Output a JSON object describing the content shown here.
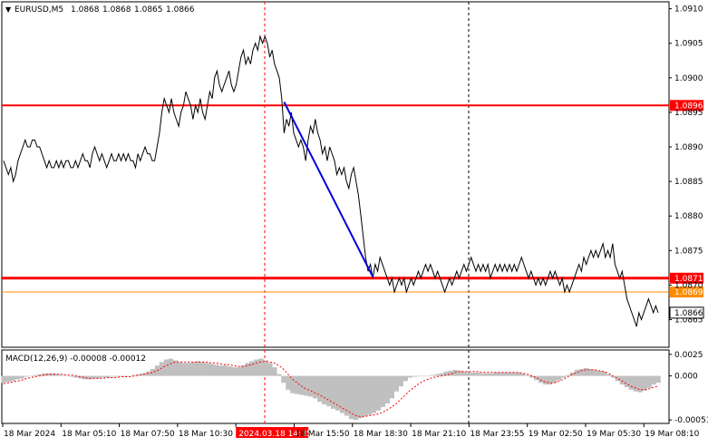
{
  "chart_data": [
    {
      "type": "line",
      "header": {
        "symbol": "EURUSD,M5",
        "open": "1.0868",
        "high": "1.0868",
        "low": "1.0865",
        "close": "1.0866"
      },
      "ylim": [
        1.0861,
        1.0911
      ],
      "y_ticks": [
        "1.0910",
        "1.0905",
        "1.0900",
        "1.0895",
        "1.0890",
        "1.0885",
        "1.0880",
        "1.0875",
        "1.0870",
        "1.0865"
      ],
      "x_ticks": [
        "18 Mar 2024",
        "18 Mar 05:10",
        "18 Mar 07:50",
        "18 Mar 10:30",
        "2024.03.18 14:35",
        "18 Mar 15:50",
        "18 Mar 18:30",
        "18 Mar 21:10",
        "18 Mar 23:55",
        "19 Mar 02:50",
        "19 Mar 05:30",
        "19 Mar 08:10"
      ],
      "highlighted_time": "2024.03.18 14:35",
      "levels": [
        {
          "value": 1.0896,
          "label": "1.0896",
          "color": "#ff0000",
          "style": "solid"
        },
        {
          "value": 1.0871,
          "label": "1.0871",
          "color": "#ff0000",
          "style": "thick"
        },
        {
          "value": 1.0869,
          "label": "1.0869",
          "color": "#ff8c00",
          "style": "thin"
        }
      ],
      "current_price": "1.0866",
      "trendline": {
        "from": {
          "x": 117,
          "y": 1.08965
        },
        "to": {
          "x": 154,
          "y": 1.08712
        },
        "color": "#0000dd"
      },
      "series": [
        {
          "color": "#000000",
          "values": [
            1.0888,
            1.0887,
            1.0886,
            1.0887,
            1.0885,
            1.0886,
            1.0888,
            1.0889,
            1.089,
            1.0891,
            1.089,
            1.089,
            1.0891,
            1.0891,
            1.089,
            1.089,
            1.0889,
            1.0888,
            1.0887,
            1.0888,
            1.0887,
            1.0887,
            1.0888,
            1.0887,
            1.0888,
            1.0887,
            1.0888,
            1.0888,
            1.0887,
            1.0887,
            1.0888,
            1.0887,
            1.0888,
            1.0889,
            1.0888,
            1.0888,
            1.0887,
            1.0889,
            1.089,
            1.0889,
            1.0888,
            1.0889,
            1.0888,
            1.0887,
            1.0888,
            1.0889,
            1.0888,
            1.0888,
            1.0889,
            1.0888,
            1.0889,
            1.0888,
            1.0889,
            1.0888,
            1.0888,
            1.0887,
            1.0889,
            1.0888,
            1.0889,
            1.089,
            1.0889,
            1.0889,
            1.0888,
            1.0888,
            1.089,
            1.0892,
            1.0895,
            1.0897,
            1.0896,
            1.0895,
            1.0897,
            1.0895,
            1.0894,
            1.0893,
            1.0895,
            1.0896,
            1.0898,
            1.0897,
            1.0896,
            1.0894,
            1.0896,
            1.0895,
            1.0897,
            1.0895,
            1.0894,
            1.0896,
            1.0898,
            1.0897,
            1.09,
            1.0901,
            1.0899,
            1.0898,
            1.0899,
            1.09,
            1.0901,
            1.0899,
            1.0898,
            1.0899,
            1.0901,
            1.0903,
            1.0904,
            1.0902,
            1.0903,
            1.0902,
            1.0904,
            1.0905,
            1.0904,
            1.0906,
            1.0905,
            1.0906,
            1.0905,
            1.0903,
            1.0904,
            1.0902,
            1.0901,
            1.09,
            1.0897,
            1.0892,
            1.0894,
            1.0893,
            1.0895,
            1.0892,
            1.0891,
            1.089,
            1.0891,
            1.089,
            1.0888,
            1.0891,
            1.0893,
            1.0892,
            1.0894,
            1.0892,
            1.0891,
            1.0889,
            1.089,
            1.0888,
            1.089,
            1.0889,
            1.0888,
            1.0886,
            1.0887,
            1.0886,
            1.0887,
            1.0885,
            1.0884,
            1.0886,
            1.0887,
            1.0885,
            1.0883,
            1.088,
            1.0877,
            1.0874,
            1.0872,
            1.0873,
            1.0871,
            1.0873,
            1.0872,
            1.0874,
            1.0873,
            1.0872,
            1.0871,
            1.087,
            1.0871,
            1.0869,
            1.087,
            1.0871,
            1.087,
            1.0871,
            1.0869,
            1.087,
            1.0871,
            1.087,
            1.0871,
            1.0872,
            1.0871,
            1.0872,
            1.0873,
            1.0872,
            1.0873,
            1.0872,
            1.0871,
            1.0872,
            1.0871,
            1.087,
            1.0869,
            1.087,
            1.0871,
            1.087,
            1.0871,
            1.0872,
            1.0871,
            1.0872,
            1.0873,
            1.0872,
            1.0873,
            1.0874,
            1.0873,
            1.0872,
            1.0873,
            1.0872,
            1.0873,
            1.0872,
            1.0873,
            1.0871,
            1.0872,
            1.0873,
            1.0872,
            1.0873,
            1.0872,
            1.0873,
            1.0872,
            1.0873,
            1.0872,
            1.0873,
            1.0872,
            1.0873,
            1.0874,
            1.0873,
            1.0872,
            1.0871,
            1.0872,
            1.0871,
            1.087,
            1.0871,
            1.087,
            1.0871,
            1.087,
            1.0871,
            1.0872,
            1.0871,
            1.0872,
            1.0871,
            1.087,
            1.0871,
            1.0869,
            1.087,
            1.0869,
            1.087,
            1.0871,
            1.0872,
            1.0873,
            1.0872,
            1.0874,
            1.0873,
            1.0874,
            1.0875,
            1.0874,
            1.0875,
            1.0874,
            1.0875,
            1.0876,
            1.0874,
            1.0875,
            1.0874,
            1.0876,
            1.0873,
            1.0872,
            1.0871,
            1.0872,
            1.087,
            1.0868,
            1.0867,
            1.0866,
            1.0865,
            1.0864,
            1.0866,
            1.0865,
            1.0866,
            1.0867,
            1.0868,
            1.0867,
            1.0866,
            1.0867,
            1.0866
          ]
        }
      ]
    },
    {
      "type": "histogram",
      "title": "MACD(12,26,9) -0.00008 -0.00012",
      "ylim": [
        -0.00055,
        0.0003
      ],
      "y_ticks": [
        "0.0025",
        "0.000",
        "-0.00051"
      ],
      "series": [
        {
          "name": "MACD",
          "color": "#c0c0c0",
          "values": [
            -8e-05,
            -7e-05,
            -6e-05,
            -4e-05,
            -3e-05,
            -1e-05,
            0.0,
            1e-05,
            2e-05,
            3e-05,
            3e-05,
            3e-05,
            2e-05,
            1e-05,
            0.0,
            -1e-05,
            -2e-05,
            -3e-05,
            -4e-05,
            -4e-05,
            -3e-05,
            -3e-05,
            -2e-05,
            -2e-05,
            -1e-05,
            -1e-05,
            -1e-05,
            -1e-05,
            0.0,
            1e-05,
            2e-05,
            3e-05,
            5e-05,
            8e-05,
            0.00012,
            0.00016,
            0.00019,
            0.0002,
            0.00018,
            0.00016,
            0.00015,
            0.00015,
            0.00016,
            0.00017,
            0.00016,
            0.00015,
            0.00014,
            0.00013,
            0.00012,
            0.00012,
            0.00011,
            0.0001,
            0.0001,
            0.00012,
            0.00015,
            0.00017,
            0.00019,
            0.0002,
            0.00018,
            0.00015,
            0.0001,
            2e-05,
            -8e-05,
            -0.00016,
            -0.0002,
            -0.00021,
            -0.00022,
            -0.00023,
            -0.00024,
            -0.00026,
            -0.0003,
            -0.00033,
            -0.00035,
            -0.00038,
            -0.0004,
            -0.00043,
            -0.00046,
            -0.0005,
            -0.00051,
            -0.00049,
            -0.00047,
            -0.00045,
            -0.00043,
            -0.0004,
            -0.00036,
            -0.00032,
            -0.00026,
            -0.00018,
            -0.00012,
            -6e-05,
            -2e-05,
            -1e-05,
            0.0,
            0.0,
            0.0,
            1e-05,
            2e-05,
            3e-05,
            5e-05,
            6e-05,
            7e-05,
            6e-05,
            5e-05,
            4e-05,
            4e-05,
            4e-05,
            3e-05,
            3e-05,
            3e-05,
            4e-05,
            4e-05,
            4e-05,
            4e-05,
            4e-05,
            4e-05,
            3e-05,
            1e-05,
            -2e-05,
            -5e-05,
            -8e-05,
            -0.0001,
            -0.0001,
            -8e-05,
            -5e-05,
            -2e-05,
            1e-05,
            4e-05,
            7e-05,
            8e-05,
            9e-05,
            8e-05,
            7e-05,
            6e-05,
            5e-05,
            2e-05,
            -2e-05,
            -6e-05,
            -0.0001,
            -0.00013,
            -0.00016,
            -0.00018,
            -0.00019,
            -0.00017,
            -0.00014,
            -0.0001,
            -8e-05
          ]
        },
        {
          "name": "Signal",
          "color": "#ff0000",
          "values": [
            -9e-05,
            -8e-05,
            -7e-05,
            -6e-05,
            -5e-05,
            -3e-05,
            -2e-05,
            -1e-05,
            0.0,
            1e-05,
            2e-05,
            2e-05,
            2e-05,
            2e-05,
            1e-05,
            1e-05,
            0.0,
            -1e-05,
            -2e-05,
            -3e-05,
            -3e-05,
            -3e-05,
            -3e-05,
            -2e-05,
            -2e-05,
            -2e-05,
            -1e-05,
            -1e-05,
            -1e-05,
            0.0,
            1e-05,
            2e-05,
            3e-05,
            4e-05,
            6e-05,
            9e-05,
            0.00012,
            0.00014,
            0.00016,
            0.00016,
            0.00016,
            0.00016,
            0.00016,
            0.00016,
            0.00016,
            0.00016,
            0.00015,
            0.00015,
            0.00014,
            0.00013,
            0.00013,
            0.00012,
            0.00011,
            0.00011,
            0.00012,
            0.00013,
            0.00015,
            0.00016,
            0.00017,
            0.00016,
            0.00015,
            0.00012,
            8e-05,
            2e-05,
            -4e-05,
            -8e-05,
            -0.00012,
            -0.00015,
            -0.00017,
            -0.0002,
            -0.00022,
            -0.00025,
            -0.00028,
            -0.00031,
            -0.00034,
            -0.00037,
            -0.0004,
            -0.00043,
            -0.00046,
            -0.00047,
            -0.00047,
            -0.00046,
            -0.00045,
            -0.00044,
            -0.00042,
            -0.00039,
            -0.00036,
            -0.00032,
            -0.00027,
            -0.00022,
            -0.00017,
            -0.00013,
            -9e-05,
            -6e-05,
            -4e-05,
            -2e-05,
            -1e-05,
            0.0,
            1e-05,
            2e-05,
            4e-05,
            5e-05,
            5e-05,
            5e-05,
            5e-05,
            5e-05,
            4e-05,
            4e-05,
            4e-05,
            4e-05,
            4e-05,
            4e-05,
            4e-05,
            4e-05,
            4e-05,
            3e-05,
            2e-05,
            0.0,
            -2e-05,
            -5e-05,
            -7e-05,
            -8e-05,
            -8e-05,
            -6e-05,
            -4e-05,
            -1e-05,
            2e-05,
            4e-05,
            6e-05,
            7e-05,
            7e-05,
            7e-05,
            6e-05,
            5e-05,
            3e-05,
            0.0,
            -3e-05,
            -6e-05,
            -9e-05,
            -0.00012,
            -0.00014,
            -0.00016,
            -0.00016,
            -0.00015,
            -0.00013,
            -0.00012
          ]
        }
      ]
    }
  ]
}
